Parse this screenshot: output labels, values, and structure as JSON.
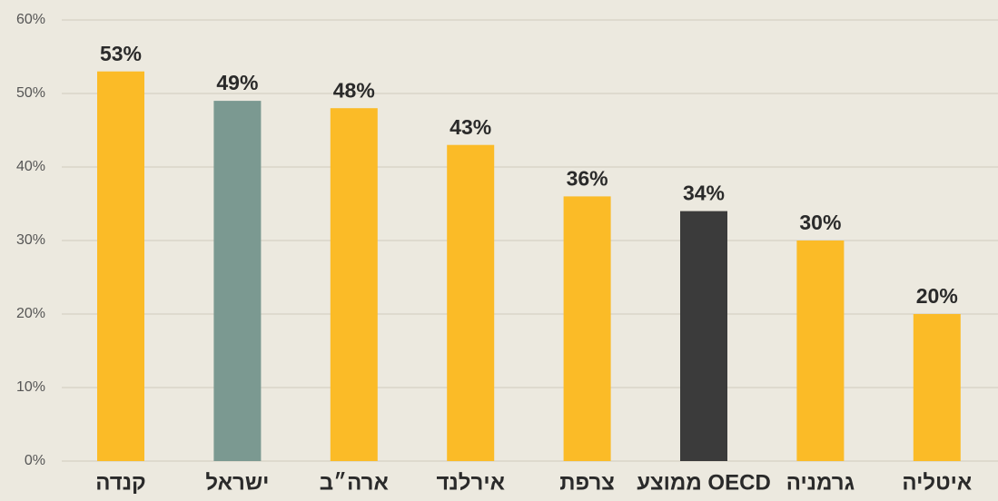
{
  "chart_data": {
    "type": "bar",
    "categories": [
      "קנדה",
      "ישראל",
      "ארה״ב",
      "אירלנד",
      "צרפת",
      "ממוצע OECD",
      "גרמניה",
      "איטליה"
    ],
    "values": [
      53,
      49,
      48,
      43,
      36,
      34,
      30,
      20
    ],
    "value_labels": [
      "53%",
      "49%",
      "48%",
      "43%",
      "36%",
      "34%",
      "30%",
      "20%"
    ],
    "colors": [
      "#fbbb27",
      "#7b9991",
      "#fbbb27",
      "#fbbb27",
      "#fbbb27",
      "#3b3b3b",
      "#fbbb27",
      "#fbbb27"
    ],
    "ylim": [
      0,
      60
    ],
    "yticks": [
      {
        "value": 0,
        "label": "0%"
      },
      {
        "value": 10,
        "label": "10%"
      },
      {
        "value": 20,
        "label": "20%"
      },
      {
        "value": 30,
        "label": "30%"
      },
      {
        "value": 40,
        "label": "40%"
      },
      {
        "value": 50,
        "label": "50%"
      },
      {
        "value": 60,
        "label": "60%"
      }
    ],
    "grid": true
  }
}
